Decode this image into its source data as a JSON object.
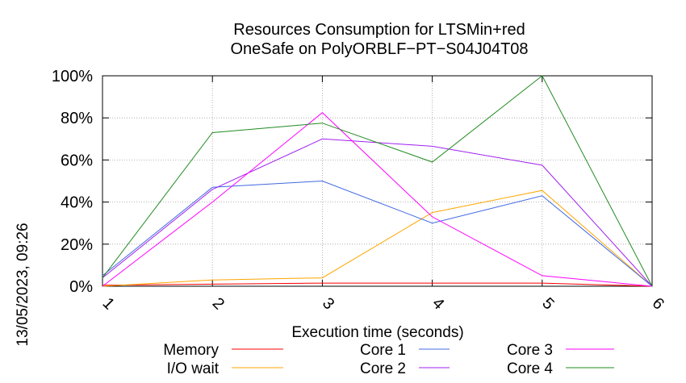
{
  "chart_data": {
    "type": "line",
    "title_lines": [
      "Resources Consumption for LTSMin+red",
      "OneSafe on PolyORBLF−PT−S04J04T08"
    ],
    "xlabel": "Execution time (seconds)",
    "ylabel": "",
    "side_label": "13/05/2023, 09:26",
    "x": [
      1,
      2,
      3,
      4,
      5,
      6
    ],
    "x_tick_labels": [
      "1",
      "2",
      "3",
      "4",
      "5",
      "6"
    ],
    "xlim": [
      1,
      6
    ],
    "ylim": [
      0,
      100
    ],
    "y_ticks": [
      0,
      20,
      40,
      60,
      80,
      100
    ],
    "y_tick_labels": [
      "0%",
      "20%",
      "40%",
      "60%",
      "80%",
      "100%"
    ],
    "grid": true,
    "legend_position": "bottom",
    "series": [
      {
        "name": "Memory",
        "color": "#ff0000",
        "values": [
          0.5,
          1.0,
          1.5,
          1.5,
          1.5,
          0
        ]
      },
      {
        "name": "I/O wait",
        "color": "#ffa500",
        "values": [
          0,
          3,
          4,
          35,
          45.5,
          0
        ]
      },
      {
        "name": "Core 1",
        "color": "#4169e1",
        "values": [
          5,
          47,
          50,
          30,
          43,
          0
        ]
      },
      {
        "name": "Core 2",
        "color": "#a020f0",
        "values": [
          4,
          46,
          70,
          66.5,
          57.5,
          0
        ]
      },
      {
        "name": "Core 3",
        "color": "#ff00ff",
        "values": [
          0,
          40,
          82.5,
          33,
          5,
          0
        ]
      },
      {
        "name": "Core 4",
        "color": "#228b22",
        "values": [
          4,
          73,
          77.5,
          59,
          100,
          0
        ]
      }
    ]
  }
}
